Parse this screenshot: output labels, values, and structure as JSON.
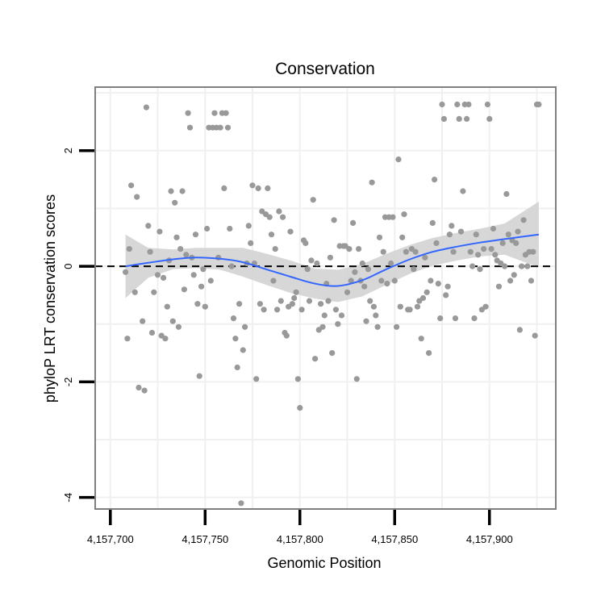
{
  "chart_data": {
    "type": "scatter",
    "title": "Conservation",
    "xlabel": "Genomic Position",
    "ylabel": "phyloP LRT conservation scores",
    "xlim": [
      4157692,
      4157935
    ],
    "ylim": [
      -4.2,
      3.1
    ],
    "x_ticks": [
      4157700,
      4157750,
      4157800,
      4157850,
      4157900
    ],
    "x_tick_labels": [
      "4,157,700",
      "4,157,750",
      "4,157,800",
      "4,157,850",
      "4,157,900"
    ],
    "y_ticks": [
      -4,
      -2,
      0,
      2
    ],
    "y_tick_labels": [
      "-4",
      "-2",
      "0",
      "2"
    ],
    "reference_line": {
      "y": 0,
      "style": "dashed",
      "color": "#000000"
    },
    "colors": {
      "points": "#999999",
      "smooth": "#3366ff",
      "band": "#d3d3d3",
      "frame": "#7f7f7f",
      "grid": "#f0f0f0",
      "axis": "#000000"
    },
    "points": [
      [
        4157708,
        -0.1
      ],
      [
        4157709,
        -1.25
      ],
      [
        4157710,
        0.3
      ],
      [
        4157711,
        1.4
      ],
      [
        4157713,
        -0.45
      ],
      [
        4157714,
        1.2
      ],
      [
        4157715,
        -2.1
      ],
      [
        4157717,
        -0.95
      ],
      [
        4157718,
        -2.15
      ],
      [
        4157719,
        2.75
      ],
      [
        4157720,
        0.7
      ],
      [
        4157721,
        0.25
      ],
      [
        4157722,
        -1.15
      ],
      [
        4157723,
        -0.45
      ],
      [
        4157725,
        -0.15
      ],
      [
        4157726,
        0.6
      ],
      [
        4157727,
        -1.2
      ],
      [
        4157728,
        -0.2
      ],
      [
        4157729,
        -1.25
      ],
      [
        4157730,
        -0.7
      ],
      [
        4157731,
        0.1
      ],
      [
        4157732,
        1.3
      ],
      [
        4157733,
        -0.95
      ],
      [
        4157734,
        1.1
      ],
      [
        4157735,
        0.5
      ],
      [
        4157736,
        -1.05
      ],
      [
        4157737,
        0.3
      ],
      [
        4157738,
        1.3
      ],
      [
        4157739,
        -0.4
      ],
      [
        4157740,
        0.2
      ],
      [
        4157741,
        2.65
      ],
      [
        4157742,
        2.4
      ],
      [
        4157743,
        0.15
      ],
      [
        4157744,
        -0.15
      ],
      [
        4157745,
        0.55
      ],
      [
        4157746,
        -0.65
      ],
      [
        4157747,
        -1.9
      ],
      [
        4157748,
        -0.35
      ],
      [
        4157749,
        -0.05
      ],
      [
        4157750,
        -0.7
      ],
      [
        4157751,
        0.65
      ],
      [
        4157752,
        2.4
      ],
      [
        4157753,
        -0.25
      ],
      [
        4157754,
        2.4
      ],
      [
        4157755,
        2.65
      ],
      [
        4157756,
        2.4
      ],
      [
        4157757,
        0.15
      ],
      [
        4157758,
        2.4
      ],
      [
        4157759,
        2.65
      ],
      [
        4157760,
        1.35
      ],
      [
        4157761,
        2.65
      ],
      [
        4157762,
        2.4
      ],
      [
        4157763,
        0.65
      ],
      [
        4157764,
        0.0
      ],
      [
        4157765,
        -0.9
      ],
      [
        4157766,
        -1.25
      ],
      [
        4157767,
        -1.75
      ],
      [
        4157768,
        -0.65
      ],
      [
        4157769,
        -4.1
      ],
      [
        4157770,
        -1.45
      ],
      [
        4157771,
        -1.05
      ],
      [
        4157772,
        0.05
      ],
      [
        4157773,
        0.7
      ],
      [
        4157774,
        0.4
      ],
      [
        4157775,
        1.4
      ],
      [
        4157776,
        0.05
      ],
      [
        4157777,
        -1.95
      ],
      [
        4157778,
        1.35
      ],
      [
        4157779,
        -0.65
      ],
      [
        4157780,
        0.95
      ],
      [
        4157781,
        -0.75
      ],
      [
        4157782,
        0.9
      ],
      [
        4157783,
        1.35
      ],
      [
        4157784,
        0.85
      ],
      [
        4157785,
        0.55
      ],
      [
        4157786,
        -0.25
      ],
      [
        4157787,
        0.3
      ],
      [
        4157788,
        -0.75
      ],
      [
        4157789,
        0.95
      ],
      [
        4157790,
        -0.6
      ],
      [
        4157791,
        0.85
      ],
      [
        4157792,
        -1.15
      ],
      [
        4157793,
        -1.2
      ],
      [
        4157794,
        -0.7
      ],
      [
        4157795,
        0.6
      ],
      [
        4157796,
        -0.65
      ],
      [
        4157797,
        -0.55
      ],
      [
        4157798,
        -0.45
      ],
      [
        4157799,
        -1.95
      ],
      [
        4157800,
        -2.45
      ],
      [
        4157801,
        -0.75
      ],
      [
        4157802,
        0.45
      ],
      [
        4157803,
        0.4
      ],
      [
        4157804,
        -0.05
      ],
      [
        4157805,
        -0.6
      ],
      [
        4157806,
        0.1
      ],
      [
        4157807,
        1.15
      ],
      [
        4157808,
        -1.6
      ],
      [
        4157809,
        0.05
      ],
      [
        4157810,
        -1.1
      ],
      [
        4157811,
        -0.65
      ],
      [
        4157812,
        -1.05
      ],
      [
        4157813,
        -0.85
      ],
      [
        4157814,
        -0.3
      ],
      [
        4157815,
        -0.6
      ],
      [
        4157816,
        0.15
      ],
      [
        4157817,
        -1.5
      ],
      [
        4157818,
        0.8
      ],
      [
        4157819,
        -0.75
      ],
      [
        4157820,
        -1.0
      ],
      [
        4157821,
        0.35
      ],
      [
        4157822,
        -0.85
      ],
      [
        4157823,
        0.35
      ],
      [
        4157824,
        0.35
      ],
      [
        4157825,
        -0.45
      ],
      [
        4157826,
        0.3
      ],
      [
        4157827,
        -0.25
      ],
      [
        4157828,
        0.75
      ],
      [
        4157829,
        -0.1
      ],
      [
        4157830,
        -1.95
      ],
      [
        4157831,
        0.3
      ],
      [
        4157832,
        -0.25
      ],
      [
        4157833,
        0.05
      ],
      [
        4157834,
        -0.35
      ],
      [
        4157835,
        -0.95
      ],
      [
        4157836,
        -0.05
      ],
      [
        4157837,
        -0.6
      ],
      [
        4157838,
        1.45
      ],
      [
        4157839,
        -0.7
      ],
      [
        4157840,
        -0.85
      ],
      [
        4157841,
        -1.05
      ],
      [
        4157842,
        0.5
      ],
      [
        4157843,
        -0.25
      ],
      [
        4157844,
        0.25
      ],
      [
        4157845,
        0.85
      ],
      [
        4157846,
        -0.3
      ],
      [
        4157847,
        0.85
      ],
      [
        4157848,
        0.05
      ],
      [
        4157849,
        0.85
      ],
      [
        4157850,
        -0.25
      ],
      [
        4157851,
        -1.05
      ],
      [
        4157852,
        1.85
      ],
      [
        4157853,
        -0.7
      ],
      [
        4157854,
        0.5
      ],
      [
        4157855,
        0.9
      ],
      [
        4157856,
        0.25
      ],
      [
        4157857,
        -0.75
      ],
      [
        4157858,
        -0.75
      ],
      [
        4157859,
        0.3
      ],
      [
        4157860,
        -0.05
      ],
      [
        4157861,
        0.25
      ],
      [
        4157862,
        -0.7
      ],
      [
        4157863,
        -0.6
      ],
      [
        4157864,
        -1.25
      ],
      [
        4157865,
        -0.55
      ],
      [
        4157866,
        0.15
      ],
      [
        4157867,
        -0.45
      ],
      [
        4157868,
        -1.5
      ],
      [
        4157869,
        -0.25
      ],
      [
        4157870,
        0.75
      ],
      [
        4157871,
        1.5
      ],
      [
        4157872,
        0.4
      ],
      [
        4157873,
        -0.3
      ],
      [
        4157874,
        -0.9
      ],
      [
        4157875,
        2.8
      ],
      [
        4157876,
        2.55
      ],
      [
        4157877,
        -0.5
      ],
      [
        4157878,
        -0.35
      ],
      [
        4157879,
        0.55
      ],
      [
        4157880,
        0.7
      ],
      [
        4157881,
        0.25
      ],
      [
        4157882,
        -0.9
      ],
      [
        4157883,
        2.8
      ],
      [
        4157884,
        2.55
      ],
      [
        4157885,
        0.6
      ],
      [
        4157886,
        1.3
      ],
      [
        4157887,
        2.8
      ],
      [
        4157888,
        2.55
      ],
      [
        4157889,
        2.8
      ],
      [
        4157890,
        0.25
      ],
      [
        4157891,
        0.0
      ],
      [
        4157892,
        -0.9
      ],
      [
        4157893,
        0.55
      ],
      [
        4157894,
        0.2
      ],
      [
        4157895,
        -0.05
      ],
      [
        4157896,
        -0.75
      ],
      [
        4157897,
        0.3
      ],
      [
        4157898,
        -0.7
      ],
      [
        4157899,
        2.8
      ],
      [
        4157900,
        2.55
      ],
      [
        4157901,
        0.3
      ],
      [
        4157902,
        0.65
      ],
      [
        4157903,
        0.2
      ],
      [
        4157904,
        0.1
      ],
      [
        4157905,
        -0.35
      ],
      [
        4157906,
        0.05
      ],
      [
        4157907,
        0.4
      ],
      [
        4157908,
        0.0
      ],
      [
        4157909,
        1.25
      ],
      [
        4157910,
        0.55
      ],
      [
        4157911,
        -0.25
      ],
      [
        4157912,
        0.45
      ],
      [
        4157913,
        -0.15
      ],
      [
        4157914,
        0.4
      ],
      [
        4157915,
        0.6
      ],
      [
        4157916,
        -1.1
      ],
      [
        4157917,
        0.0
      ],
      [
        4157918,
        0.8
      ],
      [
        4157919,
        0.2
      ],
      [
        4157920,
        0.0
      ],
      [
        4157921,
        0.25
      ],
      [
        4157922,
        -0.25
      ],
      [
        4157923,
        0.25
      ],
      [
        4157924,
        -1.2
      ],
      [
        4157925,
        2.8
      ],
      [
        4157926,
        2.8
      ]
    ],
    "smooth": {
      "method": "loess",
      "x": [
        4157708,
        4157720,
        4157733,
        4157745,
        4157758,
        4157770,
        4157782,
        4157795,
        4157808,
        4157820,
        4157833,
        4157845,
        4157858,
        4157870,
        4157883,
        4157895,
        4157908,
        4157926
      ],
      "y": [
        0.0,
        0.06,
        0.12,
        0.15,
        0.13,
        0.07,
        -0.05,
        -0.18,
        -0.3,
        -0.34,
        -0.24,
        -0.06,
        0.12,
        0.25,
        0.34,
        0.41,
        0.47,
        0.55
      ],
      "lower": [
        -0.55,
        -0.2,
        -0.05,
        -0.03,
        -0.06,
        -0.18,
        -0.32,
        -0.46,
        -0.56,
        -0.62,
        -0.52,
        -0.33,
        -0.13,
        0.01,
        0.1,
        0.17,
        0.2,
        -0.02
      ],
      "upper": [
        0.55,
        0.32,
        0.29,
        0.32,
        0.32,
        0.32,
        0.22,
        0.1,
        -0.04,
        -0.06,
        0.04,
        0.21,
        0.37,
        0.49,
        0.58,
        0.65,
        0.74,
        1.12
      ]
    }
  }
}
